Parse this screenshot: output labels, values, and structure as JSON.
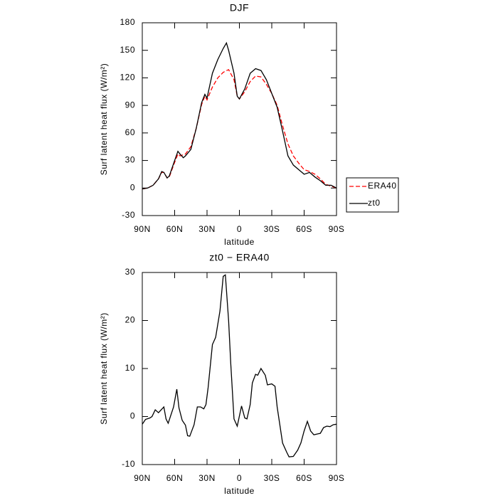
{
  "chart_data": [
    {
      "type": "line",
      "title": "DJF",
      "x_label": "latitude",
      "y_label": "Surf latent heat flux (W/m²)",
      "xlim": [
        90,
        -90
      ],
      "xticks": [
        {
          "value": 90,
          "label": "90N"
        },
        {
          "value": 60,
          "label": "60N"
        },
        {
          "value": 30,
          "label": "30N"
        },
        0,
        {
          "value": -30,
          "label": "30S"
        },
        {
          "value": -60,
          "label": "60S"
        },
        {
          "value": -90,
          "label": "90S"
        }
      ],
      "ylim": [
        -30,
        180
      ],
      "yticks": [
        -30,
        0,
        30,
        60,
        90,
        120,
        150,
        180
      ],
      "legend": "right",
      "series": [
        {
          "name": "ERA40",
          "color": "#ff0000",
          "line_style": "dashed",
          "x": [
            90,
            85,
            80,
            75,
            72,
            70,
            67,
            65,
            60,
            57,
            55,
            50,
            45,
            40,
            35,
            32,
            30,
            25,
            20,
            15,
            10,
            5,
            2,
            0,
            -5,
            -10,
            -15,
            -20,
            -25,
            -30,
            -35,
            -40,
            -45,
            -50,
            -55,
            -60,
            -65,
            -70,
            -75,
            -80,
            -85,
            -90
          ],
          "values": [
            -1,
            0,
            3,
            10,
            17,
            17,
            11,
            12,
            28,
            37,
            35,
            37,
            45,
            65,
            91,
            100,
            96,
            110,
            120,
            126,
            129,
            118,
            100,
            97,
            105,
            116,
            122,
            121,
            113,
            103,
            90,
            68,
            48,
            35,
            27,
            20,
            18,
            15,
            10,
            4,
            2,
            0
          ]
        },
        {
          "name": "zt0",
          "color": "#000000",
          "line_style": "solid",
          "x": [
            90,
            85,
            80,
            75,
            72,
            70,
            67,
            65,
            60,
            57,
            55,
            52,
            50,
            45,
            40,
            35,
            32,
            30,
            25,
            20,
            15,
            12,
            10,
            5,
            2,
            0,
            -5,
            -10,
            -15,
            -20,
            -25,
            -30,
            -35,
            -40,
            -45,
            -50,
            -55,
            -60,
            -65,
            -70,
            -75,
            -80,
            -85,
            -90
          ],
          "values": [
            -1,
            0,
            3,
            10,
            18,
            17,
            11,
            13,
            30,
            40,
            37,
            33,
            35,
            42,
            65,
            93,
            102,
            98,
            125,
            140,
            152,
            158,
            150,
            125,
            100,
            97,
            108,
            125,
            130,
            128,
            118,
            103,
            88,
            62,
            35,
            25,
            20,
            15,
            17,
            12,
            8,
            3,
            3,
            0
          ]
        }
      ]
    },
    {
      "type": "line",
      "title": "zt0 − ERA40",
      "x_label": "latitude",
      "y_label": "Surf latent heat flux (W/m²)",
      "xlim": [
        90,
        -90
      ],
      "xticks": [
        {
          "value": 90,
          "label": "90N"
        },
        {
          "value": 60,
          "label": "60N"
        },
        {
          "value": 30,
          "label": "30N"
        },
        0,
        {
          "value": -30,
          "label": "30S"
        },
        {
          "value": -60,
          "label": "60S"
        },
        {
          "value": -90,
          "label": "90S"
        }
      ],
      "ylim": [
        -10,
        30
      ],
      "yticks": [
        -10,
        0,
        10,
        20,
        30
      ],
      "color": "#000000",
      "x": [
        90,
        87,
        83,
        81,
        78,
        75,
        70,
        68,
        66,
        61,
        58,
        56,
        53,
        50,
        48,
        46,
        42,
        39,
        36,
        33,
        31,
        29,
        25,
        22,
        18,
        15,
        13,
        10,
        8,
        5,
        2,
        -2,
        -5,
        -7,
        -10,
        -12,
        -15,
        -17,
        -20,
        -24,
        -26,
        -30,
        -33,
        -35,
        -37,
        -40,
        -44,
        -46,
        -50,
        -54,
        -57,
        -60,
        -63,
        -66,
        -69,
        -73,
        -75,
        -78,
        -81,
        -84,
        -87,
        -90
      ],
      "values": [
        -1.6,
        -0.6,
        -0.3,
        0,
        1.4,
        0.8,
        2,
        -0.5,
        -1.4,
        2,
        5.7,
        1.8,
        -0.8,
        -1.8,
        -4,
        -4.1,
        -1.7,
        2,
        2,
        1.6,
        2.5,
        6,
        15,
        16.5,
        22,
        29.2,
        29.5,
        20,
        11,
        -0.5,
        -2,
        2.2,
        -0.3,
        -0.5,
        2.5,
        7,
        8.8,
        8.6,
        10,
        8.6,
        6.6,
        6.8,
        6.3,
        2,
        -1,
        -5.5,
        -7.5,
        -8.4,
        -8.3,
        -7,
        -5.5,
        -3,
        -1,
        -3,
        -3.8,
        -3.6,
        -3.5,
        -2.3,
        -2,
        -2.1,
        -1.7,
        -1.6
      ]
    }
  ]
}
